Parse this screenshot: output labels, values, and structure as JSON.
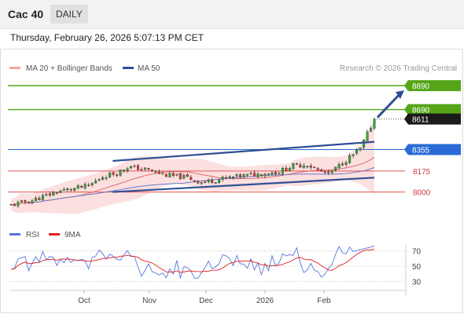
{
  "header": {
    "symbol": "Cac 40",
    "interval": "DAILY"
  },
  "timestamp": "Thursday, February 26, 2026 5:07:13 PM CET",
  "legend": {
    "ma20_label": "MA 20 + Bollinger Bands",
    "ma50_label": "MA 50",
    "copyright": "Research © 2026 Trading Central",
    "rsi_label": "RSI",
    "rsi_ma_label": "9MA"
  },
  "colors": {
    "candle_up": "#3aaa35",
    "candle_down": "#e8393a",
    "bollinger_fill": "#fbdada",
    "ma20": "#e26a6a",
    "ma50": "#6a78c8",
    "channel": "#2e4f95",
    "resistance": "#55a516",
    "pivot": "#2a6bd6",
    "support": "#e25555",
    "rsi": "#5577dd",
    "rsi_ma": "#e02020"
  },
  "chart_data": [
    {
      "type": "candlestick",
      "title": "Cac 40",
      "x_ticks": [
        "Oct",
        "Nov",
        "Dec",
        "2026",
        "Feb"
      ],
      "ylim": [
        7800,
        8950
      ],
      "price_levels": [
        {
          "label": "8890",
          "value": 8890,
          "kind": "resistance"
        },
        {
          "label": "8690",
          "value": 8690,
          "kind": "resistance"
        },
        {
          "label": "8611",
          "value": 8611,
          "kind": "last_price"
        },
        {
          "label": "8355",
          "value": 8355,
          "kind": "pivot"
        },
        {
          "label": "8175",
          "value": 8175,
          "kind": "support"
        },
        {
          "label": "8000",
          "value": 8000,
          "kind": "support"
        }
      ],
      "series": [
        {
          "name": "MA 20 + Bollinger Bands"
        },
        {
          "name": "MA 50"
        }
      ],
      "trend_channel": {
        "upper": [
          [
            0.28,
            8260
          ],
          [
            1.0,
            8420
          ]
        ],
        "lower": [
          [
            0.28,
            8000
          ],
          [
            1.0,
            8120
          ]
        ]
      },
      "projection": {
        "from": 8611,
        "to": 8890
      }
    },
    {
      "type": "line",
      "title": "RSI",
      "y_ticks": [
        70,
        50,
        30
      ],
      "ylim": [
        20,
        80
      ],
      "series": [
        {
          "name": "RSI"
        },
        {
          "name": "9MA"
        }
      ]
    }
  ]
}
